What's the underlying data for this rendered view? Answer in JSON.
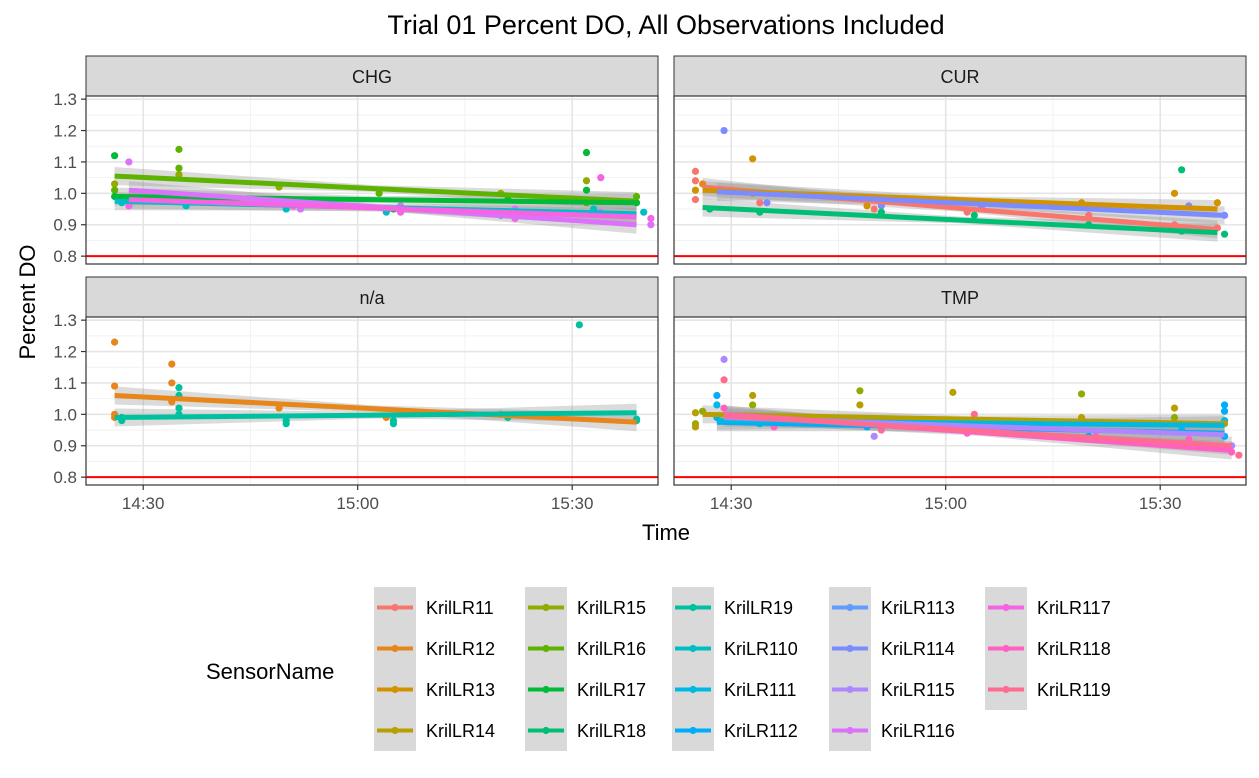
{
  "chart_data": {
    "type": "scatter",
    "title": "Trial 01 Percent DO, All Observations Included",
    "xlabel": "Time",
    "ylabel": "Percent DO",
    "x_unit": "minutes since 14:00",
    "xlim": [
      22,
      102
    ],
    "ylim": [
      0.775,
      1.31
    ],
    "x_ticks": [
      {
        "value": 30,
        "label": "14:30"
      },
      {
        "value": 60,
        "label": "15:00"
      },
      {
        "value": 90,
        "label": "15:30"
      }
    ],
    "y_ticks": [
      {
        "value": 0.8,
        "label": "0.8"
      },
      {
        "value": 0.9,
        "label": "0.9"
      },
      {
        "value": 1.0,
        "label": "1.0"
      },
      {
        "value": 1.1,
        "label": "1.1"
      },
      {
        "value": 1.2,
        "label": "1.2"
      },
      {
        "value": 1.3,
        "label": "1.3"
      }
    ],
    "reference_line": {
      "y": 0.8,
      "color": "#ff0000"
    },
    "grid": true,
    "legend": {
      "title": "SensorName",
      "placement": "bottom",
      "entries": [
        {
          "name": "KrilLR11",
          "color": "#F8766D"
        },
        {
          "name": "KrilLR12",
          "color": "#E7861B"
        },
        {
          "name": "KrilLR13",
          "color": "#D39200"
        },
        {
          "name": "KrilLR14",
          "color": "#B79F00"
        },
        {
          "name": "KrilLR15",
          "color": "#93AA00"
        },
        {
          "name": "KrilLR16",
          "color": "#5EB300"
        },
        {
          "name": "KrilLR17",
          "color": "#00BA38"
        },
        {
          "name": "KrilLR18",
          "color": "#00BF74"
        },
        {
          "name": "KrilLR19",
          "color": "#00C19F"
        },
        {
          "name": "KriLR110",
          "color": "#00BFC4"
        },
        {
          "name": "KriLR111",
          "color": "#00B9E3"
        },
        {
          "name": "KriLR112",
          "color": "#00ADFA"
        },
        {
          "name": "KriLR113",
          "color": "#619CFF"
        },
        {
          "name": "KriLR114",
          "color": "#7B8CFF"
        },
        {
          "name": "KriLR115",
          "color": "#AE87FF"
        },
        {
          "name": "KriLR116",
          "color": "#DB72FB"
        },
        {
          "name": "KriLR117",
          "color": "#F564E3"
        },
        {
          "name": "KriLR118",
          "color": "#FF61C3"
        },
        {
          "name": "KriLR119",
          "color": "#FF6C91"
        }
      ]
    },
    "facets": [
      {
        "name": "CHG",
        "trends": [
          {
            "color": "#5EB300",
            "x0": 26,
            "y0": 1.055,
            "x1": 99,
            "y1": 0.975
          },
          {
            "color": "#00BA38",
            "x0": 26,
            "y0": 0.99,
            "x1": 99,
            "y1": 0.97
          },
          {
            "color": "#00BFC4",
            "x0": 26,
            "y0": 0.975,
            "x1": 99,
            "y1": 0.935
          },
          {
            "color": "#DB72FB",
            "x0": 28,
            "y0": 1.01,
            "x1": 99,
            "y1": 0.9
          },
          {
            "color": "#F564E3",
            "x0": 28,
            "y0": 0.98,
            "x1": 99,
            "y1": 0.925
          }
        ],
        "points": [
          {
            "x": 26,
            "y": 1.12,
            "color": "#00BA38"
          },
          {
            "x": 26,
            "y": 1.03,
            "color": "#93AA00"
          },
          {
            "x": 26,
            "y": 1.01,
            "color": "#5EB300"
          },
          {
            "x": 26,
            "y": 0.99,
            "color": "#00BA38"
          },
          {
            "x": 27,
            "y": 0.97,
            "color": "#00BFC4"
          },
          {
            "x": 28,
            "y": 1.1,
            "color": "#DB72FB"
          },
          {
            "x": 28,
            "y": 0.96,
            "color": "#F564E3"
          },
          {
            "x": 35,
            "y": 1.14,
            "color": "#5EB300"
          },
          {
            "x": 35,
            "y": 1.08,
            "color": "#5EB300"
          },
          {
            "x": 35,
            "y": 1.06,
            "color": "#93AA00"
          },
          {
            "x": 36,
            "y": 0.96,
            "color": "#00BFC4"
          },
          {
            "x": 36,
            "y": 0.99,
            "color": "#00BA38"
          },
          {
            "x": 49,
            "y": 1.02,
            "color": "#93AA00"
          },
          {
            "x": 50,
            "y": 0.95,
            "color": "#00BFC4"
          },
          {
            "x": 51,
            "y": 0.96,
            "color": "#F564E3"
          },
          {
            "x": 52,
            "y": 0.95,
            "color": "#DB72FB"
          },
          {
            "x": 63,
            "y": 1.0,
            "color": "#5EB300"
          },
          {
            "x": 64,
            "y": 0.94,
            "color": "#00BFC4"
          },
          {
            "x": 65,
            "y": 0.95,
            "color": "#00BA38"
          },
          {
            "x": 66,
            "y": 0.94,
            "color": "#F564E3"
          },
          {
            "x": 66,
            "y": 0.96,
            "color": "#DB72FB"
          },
          {
            "x": 80,
            "y": 1.0,
            "color": "#93AA00"
          },
          {
            "x": 80,
            "y": 0.93,
            "color": "#00BFC4"
          },
          {
            "x": 81,
            "y": 0.98,
            "color": "#00BA38"
          },
          {
            "x": 82,
            "y": 0.92,
            "color": "#F564E3"
          },
          {
            "x": 82,
            "y": 0.95,
            "color": "#DB72FB"
          },
          {
            "x": 92,
            "y": 1.13,
            "color": "#00BA38"
          },
          {
            "x": 92,
            "y": 1.04,
            "color": "#93AA00"
          },
          {
            "x": 92,
            "y": 1.01,
            "color": "#00BA38"
          },
          {
            "x": 92,
            "y": 0.97,
            "color": "#5EB300"
          },
          {
            "x": 93,
            "y": 0.95,
            "color": "#00BFC4"
          },
          {
            "x": 94,
            "y": 1.05,
            "color": "#F564E3"
          },
          {
            "x": 94,
            "y": 0.94,
            "color": "#DB72FB"
          },
          {
            "x": 99,
            "y": 0.99,
            "color": "#5EB300"
          },
          {
            "x": 99,
            "y": 0.97,
            "color": "#00BA38"
          },
          {
            "x": 100,
            "y": 0.94,
            "color": "#00BFC4"
          },
          {
            "x": 101,
            "y": 0.92,
            "color": "#F564E3"
          },
          {
            "x": 101,
            "y": 0.9,
            "color": "#DB72FB"
          }
        ]
      },
      {
        "name": "CUR",
        "trends": [
          {
            "color": "#F8766D",
            "x0": 26,
            "y0": 1.02,
            "x1": 98,
            "y1": 0.885
          },
          {
            "color": "#D39200",
            "x0": 26,
            "y0": 1.01,
            "x1": 98,
            "y1": 0.95
          },
          {
            "color": "#00BF74",
            "x0": 26,
            "y0": 0.955,
            "x1": 98,
            "y1": 0.875
          },
          {
            "color": "#7B8CFF",
            "x0": 28,
            "y0": 1.005,
            "x1": 99,
            "y1": 0.93
          }
        ],
        "points": [
          {
            "x": 25,
            "y": 1.07,
            "color": "#F8766D"
          },
          {
            "x": 25,
            "y": 1.04,
            "color": "#F8766D"
          },
          {
            "x": 25,
            "y": 1.01,
            "color": "#D39200"
          },
          {
            "x": 25,
            "y": 0.98,
            "color": "#F8766D"
          },
          {
            "x": 26,
            "y": 1.03,
            "color": "#E7861B"
          },
          {
            "x": 27,
            "y": 0.95,
            "color": "#00BF74"
          },
          {
            "x": 29,
            "y": 1.2,
            "color": "#7B8CFF"
          },
          {
            "x": 33,
            "y": 1.11,
            "color": "#D39200"
          },
          {
            "x": 33,
            "y": 1.0,
            "color": "#D39200"
          },
          {
            "x": 34,
            "y": 0.97,
            "color": "#F8766D"
          },
          {
            "x": 34,
            "y": 0.94,
            "color": "#00BF74"
          },
          {
            "x": 35,
            "y": 0.97,
            "color": "#7B8CFF"
          },
          {
            "x": 49,
            "y": 0.96,
            "color": "#D39200"
          },
          {
            "x": 50,
            "y": 0.95,
            "color": "#F8766D"
          },
          {
            "x": 51,
            "y": 0.96,
            "color": "#7B8CFF"
          },
          {
            "x": 51,
            "y": 0.94,
            "color": "#00BF74"
          },
          {
            "x": 63,
            "y": 0.94,
            "color": "#F8766D"
          },
          {
            "x": 64,
            "y": 0.93,
            "color": "#00BF74"
          },
          {
            "x": 65,
            "y": 0.96,
            "color": "#7B8CFF"
          },
          {
            "x": 79,
            "y": 0.97,
            "color": "#D39200"
          },
          {
            "x": 80,
            "y": 0.93,
            "color": "#F8766D"
          },
          {
            "x": 80,
            "y": 0.9,
            "color": "#00BF74"
          },
          {
            "x": 82,
            "y": 0.96,
            "color": "#7B8CFF"
          },
          {
            "x": 92,
            "y": 1.0,
            "color": "#D39200"
          },
          {
            "x": 92,
            "y": 0.9,
            "color": "#F8766D"
          },
          {
            "x": 93,
            "y": 1.075,
            "color": "#00BF74"
          },
          {
            "x": 93,
            "y": 0.88,
            "color": "#00BF74"
          },
          {
            "x": 94,
            "y": 0.96,
            "color": "#7B8CFF"
          },
          {
            "x": 98,
            "y": 0.97,
            "color": "#D39200"
          },
          {
            "x": 98,
            "y": 0.89,
            "color": "#F8766D"
          },
          {
            "x": 99,
            "y": 0.87,
            "color": "#00BF74"
          },
          {
            "x": 99,
            "y": 0.93,
            "color": "#7B8CFF"
          }
        ]
      },
      {
        "name": "n/a",
        "trends": [
          {
            "color": "#E7861B",
            "x0": 26,
            "y0": 1.06,
            "x1": 99,
            "y1": 0.975
          },
          {
            "color": "#00C19F",
            "x0": 26,
            "y0": 0.99,
            "x1": 99,
            "y1": 1.005
          }
        ],
        "points": [
          {
            "x": 26,
            "y": 1.23,
            "color": "#E7861B"
          },
          {
            "x": 26,
            "y": 1.09,
            "color": "#E7861B"
          },
          {
            "x": 26,
            "y": 1.0,
            "color": "#E7861B"
          },
          {
            "x": 26,
            "y": 0.99,
            "color": "#E7861B"
          },
          {
            "x": 27,
            "y": 0.98,
            "color": "#00C19F"
          },
          {
            "x": 27,
            "y": 0.99,
            "color": "#00C19F"
          },
          {
            "x": 34,
            "y": 1.16,
            "color": "#E7861B"
          },
          {
            "x": 34,
            "y": 1.1,
            "color": "#E7861B"
          },
          {
            "x": 34,
            "y": 1.04,
            "color": "#E7861B"
          },
          {
            "x": 35,
            "y": 1.085,
            "color": "#00C19F"
          },
          {
            "x": 35,
            "y": 1.06,
            "color": "#00C19F"
          },
          {
            "x": 35,
            "y": 1.02,
            "color": "#00C19F"
          },
          {
            "x": 35,
            "y": 1.0,
            "color": "#00C19F"
          },
          {
            "x": 49,
            "y": 1.02,
            "color": "#E7861B"
          },
          {
            "x": 50,
            "y": 0.98,
            "color": "#00C19F"
          },
          {
            "x": 50,
            "y": 0.97,
            "color": "#00C19F"
          },
          {
            "x": 64,
            "y": 0.99,
            "color": "#E7861B"
          },
          {
            "x": 65,
            "y": 0.98,
            "color": "#00C19F"
          },
          {
            "x": 65,
            "y": 0.97,
            "color": "#00C19F"
          },
          {
            "x": 80,
            "y": 1.0,
            "color": "#E7861B"
          },
          {
            "x": 81,
            "y": 0.99,
            "color": "#00C19F"
          },
          {
            "x": 91,
            "y": 1.285,
            "color": "#00C19F"
          },
          {
            "x": 99,
            "y": 0.98,
            "color": "#00C19F"
          },
          {
            "x": 99,
            "y": 0.985,
            "color": "#00C19F"
          }
        ]
      },
      {
        "name": "TMP",
        "trends": [
          {
            "color": "#B79F00",
            "x0": 26,
            "y0": 1.0,
            "x1": 99,
            "y1": 0.97
          },
          {
            "color": "#00ADFA",
            "x0": 28,
            "y0": 0.975,
            "x1": 99,
            "y1": 0.94
          },
          {
            "color": "#00B9E3",
            "x0": 28,
            "y0": 0.98,
            "x1": 99,
            "y1": 0.965
          },
          {
            "color": "#AE87FF",
            "x0": 29,
            "y0": 0.99,
            "x1": 99,
            "y1": 0.935
          },
          {
            "color": "#FF61C3",
            "x0": 29,
            "y0": 1.0,
            "x1": 100,
            "y1": 0.885
          },
          {
            "color": "#FF6C91",
            "x0": 29,
            "y0": 0.995,
            "x1": 100,
            "y1": 0.9
          }
        ],
        "points": [
          {
            "x": 25,
            "y": 1.005,
            "color": "#B79F00"
          },
          {
            "x": 25,
            "y": 0.97,
            "color": "#93AA00"
          },
          {
            "x": 25,
            "y": 0.96,
            "color": "#B79F00"
          },
          {
            "x": 26,
            "y": 1.01,
            "color": "#93AA00"
          },
          {
            "x": 28,
            "y": 1.06,
            "color": "#00ADFA"
          },
          {
            "x": 28,
            "y": 1.03,
            "color": "#00B9E3"
          },
          {
            "x": 28,
            "y": 0.99,
            "color": "#00ADFA"
          },
          {
            "x": 29,
            "y": 1.175,
            "color": "#AE87FF"
          },
          {
            "x": 29,
            "y": 1.11,
            "color": "#FF6C91"
          },
          {
            "x": 29,
            "y": 1.02,
            "color": "#FF61C3"
          },
          {
            "x": 33,
            "y": 1.06,
            "color": "#B79F00"
          },
          {
            "x": 33,
            "y": 1.03,
            "color": "#93AA00"
          },
          {
            "x": 34,
            "y": 0.97,
            "color": "#00B9E3"
          },
          {
            "x": 35,
            "y": 0.98,
            "color": "#AE87FF"
          },
          {
            "x": 36,
            "y": 0.96,
            "color": "#FF61C3"
          },
          {
            "x": 48,
            "y": 1.075,
            "color": "#93AA00"
          },
          {
            "x": 48,
            "y": 1.03,
            "color": "#B79F00"
          },
          {
            "x": 49,
            "y": 0.96,
            "color": "#00ADFA"
          },
          {
            "x": 50,
            "y": 0.93,
            "color": "#AE87FF"
          },
          {
            "x": 51,
            "y": 0.95,
            "color": "#FF6C91"
          },
          {
            "x": 61,
            "y": 1.07,
            "color": "#B79F00"
          },
          {
            "x": 62,
            "y": 0.95,
            "color": "#00B9E3"
          },
          {
            "x": 63,
            "y": 0.94,
            "color": "#FF61C3"
          },
          {
            "x": 64,
            "y": 1.0,
            "color": "#FF6C91"
          },
          {
            "x": 65,
            "y": 0.95,
            "color": "#AE87FF"
          },
          {
            "x": 79,
            "y": 1.065,
            "color": "#93AA00"
          },
          {
            "x": 79,
            "y": 0.99,
            "color": "#B79F00"
          },
          {
            "x": 80,
            "y": 0.93,
            "color": "#00ADFA"
          },
          {
            "x": 81,
            "y": 0.93,
            "color": "#FF61C3"
          },
          {
            "x": 92,
            "y": 1.02,
            "color": "#B79F00"
          },
          {
            "x": 92,
            "y": 0.99,
            "color": "#93AA00"
          },
          {
            "x": 93,
            "y": 0.95,
            "color": "#00B9E3"
          },
          {
            "x": 94,
            "y": 0.9,
            "color": "#AE87FF"
          },
          {
            "x": 94,
            "y": 0.92,
            "color": "#FF61C3"
          },
          {
            "x": 99,
            "y": 1.03,
            "color": "#00ADFA"
          },
          {
            "x": 99,
            "y": 1.01,
            "color": "#00ADFA"
          },
          {
            "x": 99,
            "y": 0.98,
            "color": "#00B9E3"
          },
          {
            "x": 99,
            "y": 0.97,
            "color": "#B79F00"
          },
          {
            "x": 99,
            "y": 0.93,
            "color": "#00ADFA"
          },
          {
            "x": 100,
            "y": 0.9,
            "color": "#AE87FF"
          },
          {
            "x": 100,
            "y": 0.88,
            "color": "#FF61C3"
          },
          {
            "x": 101,
            "y": 0.87,
            "color": "#FF6C91"
          }
        ]
      }
    ]
  }
}
